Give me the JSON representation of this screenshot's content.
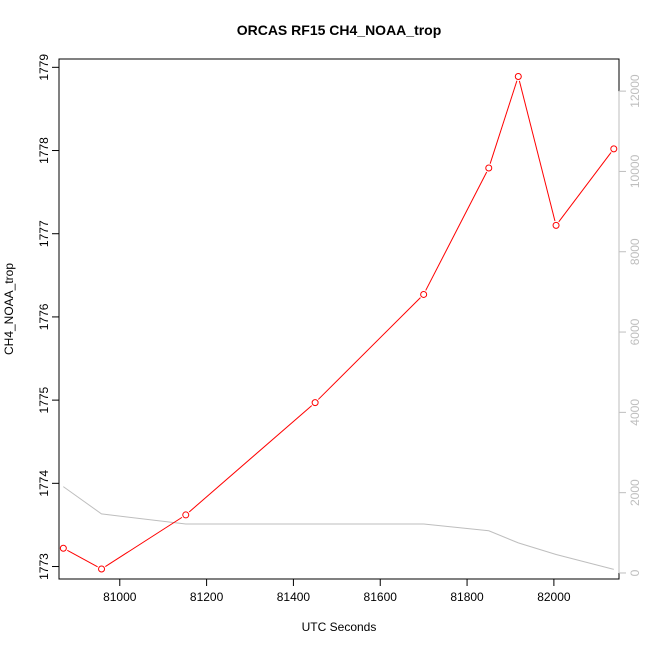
{
  "chart_data": {
    "type": "line",
    "title": "ORCAS RF15 CH4_NOAA_trop",
    "xlabel": "UTC Seconds",
    "ylabel": "CH4_NOAA_trop",
    "xlim": [
      80860,
      82150
    ],
    "ylim": [
      1772.85,
      1779.1
    ],
    "y2lim": [
      -150,
      12800
    ],
    "x_ticks": [
      81000,
      81200,
      81400,
      81600,
      81800,
      82000
    ],
    "y_ticks": [
      1773,
      1774,
      1775,
      1776,
      1777,
      1778,
      1779
    ],
    "y2_ticks": [
      0,
      2000,
      4000,
      6000,
      8000,
      10000,
      12000
    ],
    "grid": false,
    "series": [
      {
        "axis": "left",
        "color": "#ff0000",
        "markers": "open-circle",
        "x": [
          80870,
          80958,
          81152,
          81450,
          81700,
          81850,
          81918,
          82005,
          82138
        ],
        "y": [
          1773.22,
          1772.97,
          1773.62,
          1774.97,
          1776.27,
          1777.79,
          1778.89,
          1777.1,
          1778.02
        ]
      },
      {
        "axis": "right",
        "color": "#bebebe",
        "markers": "none",
        "x": [
          80870,
          80958,
          81152,
          81450,
          81700,
          81850,
          81918,
          82005,
          82138
        ],
        "y": [
          2150,
          1470,
          1220,
          1220,
          1220,
          1050,
          750,
          460,
          90
        ]
      }
    ]
  }
}
